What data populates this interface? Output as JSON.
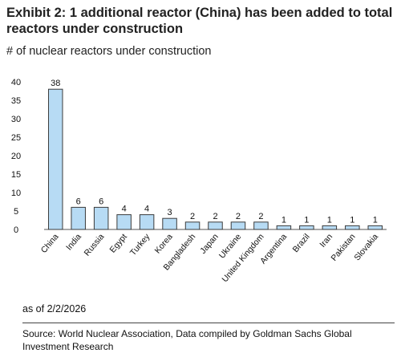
{
  "header": {
    "title": "Exhibit 2: 1 additional reactor (China) has been added to total reactors under construction",
    "subtitle": "# of nuclear reactors under construction"
  },
  "footer": {
    "as_of": "as of 2/2/2026",
    "source": "Source: World Nuclear Association, Data compiled by Goldman Sachs Global Investment Research"
  },
  "colors": {
    "bar_fill": "#b7dbf4",
    "bar_stroke": "#3b3b3b",
    "axis": "#555555"
  },
  "chart_data": {
    "type": "bar",
    "title": "",
    "xlabel": "",
    "ylabel": "",
    "ylim": [
      0,
      40
    ],
    "yticks": [
      0,
      5,
      10,
      15,
      20,
      25,
      30,
      35,
      40
    ],
    "grid": false,
    "categories": [
      "China",
      "India",
      "Russia",
      "Egypt",
      "Turkey",
      "Korea",
      "Bangladesh",
      "Japan",
      "Ukraine",
      "United Kingdom",
      "Argentina",
      "Brazil",
      "Iran",
      "Pakistan",
      "Slovakia"
    ],
    "values": [
      38,
      6,
      6,
      4,
      4,
      3,
      2,
      2,
      2,
      2,
      1,
      1,
      1,
      1,
      1
    ],
    "data_labels": true
  }
}
